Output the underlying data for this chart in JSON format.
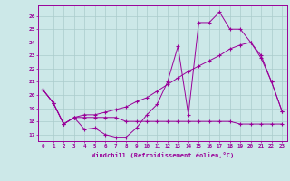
{
  "xlabel": "Windchill (Refroidissement éolien,°C)",
  "background_color": "#cce8e8",
  "grid_color": "#aacccc",
  "line_color": "#990099",
  "x_ticks": [
    0,
    1,
    2,
    3,
    4,
    5,
    6,
    7,
    8,
    9,
    10,
    11,
    12,
    13,
    14,
    15,
    16,
    17,
    18,
    19,
    20,
    21,
    22,
    23
  ],
  "ylim": [
    16.5,
    26.8
  ],
  "xlim": [
    -0.5,
    23.5
  ],
  "yticks": [
    17,
    18,
    19,
    20,
    21,
    22,
    23,
    24,
    25,
    26
  ],
  "line1": [
    20.4,
    19.4,
    17.8,
    18.3,
    17.4,
    17.5,
    17.0,
    16.8,
    16.8,
    17.5,
    18.5,
    19.3,
    21.0,
    23.7,
    18.5,
    25.5,
    25.5,
    26.3,
    25.0,
    25.0,
    24.0,
    22.8,
    21.0,
    18.8
  ],
  "line2": [
    20.4,
    19.4,
    17.8,
    18.3,
    18.3,
    18.3,
    18.3,
    18.3,
    18.0,
    18.0,
    18.0,
    18.0,
    18.0,
    18.0,
    18.0,
    18.0,
    18.0,
    18.0,
    18.0,
    17.8,
    17.8,
    17.8,
    17.8,
    17.8
  ],
  "line3": [
    20.4,
    19.4,
    17.8,
    18.3,
    18.5,
    18.5,
    18.7,
    18.9,
    19.1,
    19.5,
    19.8,
    20.3,
    20.8,
    21.3,
    21.8,
    22.2,
    22.6,
    23.0,
    23.5,
    23.8,
    24.0,
    23.0,
    21.0,
    18.8
  ]
}
